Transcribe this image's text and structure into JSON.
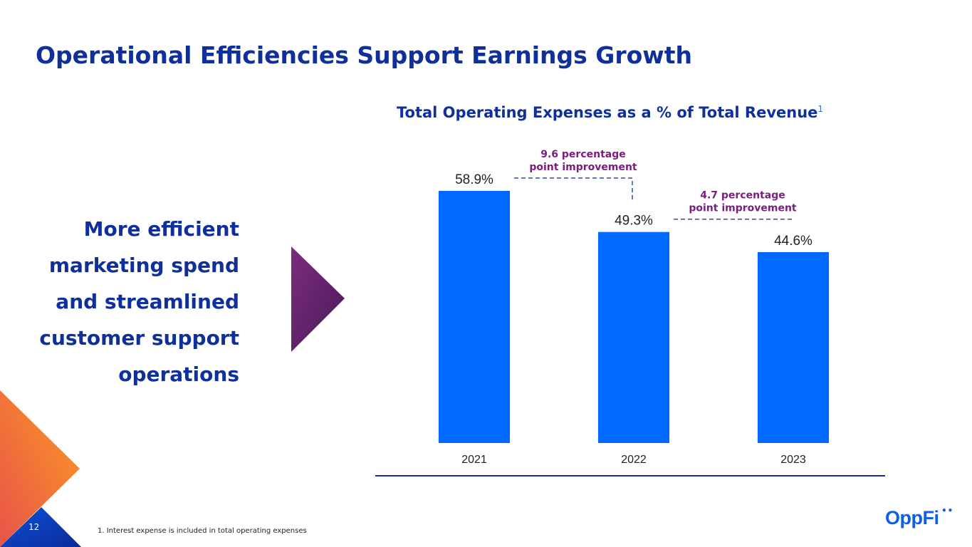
{
  "slide": {
    "title": "Operational Efficiencies Support Earnings Growth",
    "page_number": "12",
    "footnote": "1. Interest expense is included in total operating expenses",
    "logo_text": "OppFi",
    "logo_mark": "••"
  },
  "left_panel": {
    "lines": [
      "More efficient",
      "marketing spend",
      "and streamlined",
      "customer support",
      "operations"
    ]
  },
  "colors": {
    "title": "#0f2f9b",
    "bar": "#0069ff",
    "annotation": "#7b1c7e",
    "connector": "#2e4fa5"
  },
  "chart_data": {
    "type": "bar",
    "title": "Total Operating Expenses as a % of Total Revenue",
    "title_superscript": "1",
    "categories": [
      "2021",
      "2022",
      "2023"
    ],
    "values": [
      58.9,
      49.3,
      44.6
    ],
    "value_labels": [
      "58.9%",
      "49.3%",
      "44.6%"
    ],
    "ylim": [
      0,
      60
    ],
    "xlabel": "",
    "ylabel": "",
    "annotations": [
      {
        "from_index": 0,
        "to_index": 1,
        "line1": "9.6 percentage",
        "line2": "point improvement"
      },
      {
        "from_index": 1,
        "to_index": 2,
        "line1": "4.7 percentage",
        "line2": "point improvement"
      }
    ]
  }
}
